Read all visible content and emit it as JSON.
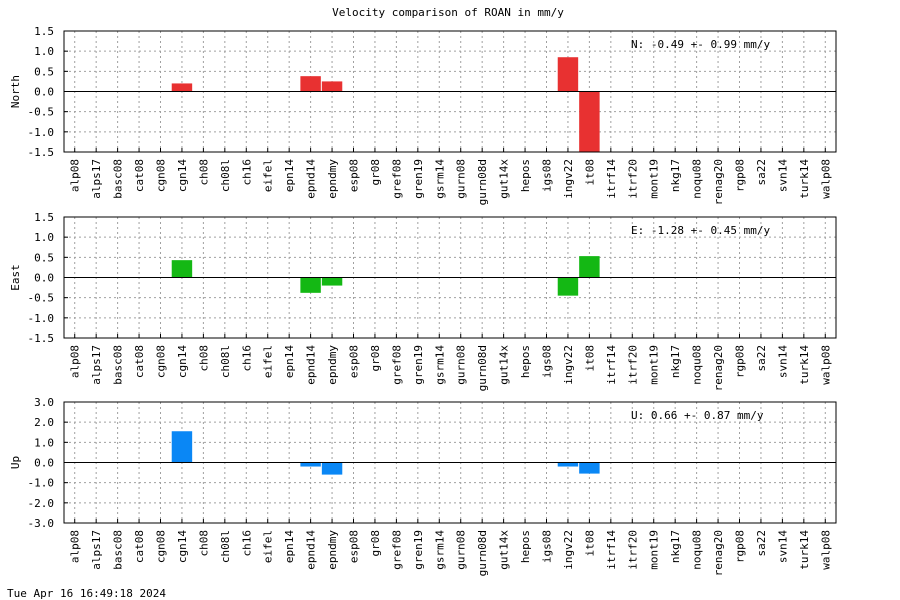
{
  "title": "Velocity comparison of ROAN in mm/y",
  "timestamp": "Tue Apr 16 16:49:18 2024",
  "chart_data": {
    "type": "bar",
    "title": "Velocity comparison of ROAN in mm/y",
    "categories": [
      "alp08",
      "alps17",
      "basc08",
      "cat08",
      "cgn08",
      "cgn14",
      "ch08",
      "ch08l",
      "ch16",
      "eifel",
      "epn14",
      "epnd14",
      "epndmy",
      "esp08",
      "gr08",
      "gref08",
      "gren19",
      "gsrm14",
      "gurn08",
      "gurn08d",
      "gut14x",
      "hepos",
      "igs08",
      "ingv22",
      "it08",
      "itrf14",
      "itrf20",
      "mont19",
      "nkg17",
      "noqu08",
      "renag20",
      "rgp08",
      "sa22",
      "svn14",
      "turk14",
      "walp08"
    ],
    "panels": [
      {
        "ylabel": "North",
        "ylim": [
          -1.5,
          1.5
        ],
        "yticks": [
          "1.5",
          "1.0",
          "0.5",
          "0.0",
          "-0.5",
          "-1.0",
          "-1.5"
        ],
        "color": "#e83131",
        "annotation": "N:  -0.49 +-  0.99 mm/y",
        "values": [
          null,
          null,
          null,
          null,
          null,
          0.2,
          null,
          null,
          null,
          null,
          null,
          0.38,
          0.25,
          null,
          null,
          null,
          null,
          null,
          null,
          null,
          null,
          null,
          null,
          0.85,
          null,
          null,
          null,
          null,
          null,
          null,
          null,
          null,
          null,
          null,
          null,
          null
        ],
        "clipped": {
          "24": -1.5
        }
      },
      {
        "ylabel": "East",
        "ylim": [
          -1.5,
          1.5
        ],
        "yticks": [
          "1.5",
          "1.0",
          "0.5",
          "0.0",
          "-0.5",
          "-1.0",
          "-1.5"
        ],
        "color": "#14b814",
        "annotation": "E:  -1.28 +-  0.45 mm/y",
        "values": [
          null,
          null,
          null,
          null,
          null,
          0.43,
          null,
          null,
          null,
          null,
          null,
          -0.38,
          -0.2,
          null,
          null,
          null,
          null,
          null,
          null,
          null,
          null,
          null,
          null,
          -0.45,
          0.53,
          null,
          null,
          null,
          null,
          null,
          null,
          null,
          null,
          null,
          null,
          null
        ]
      },
      {
        "ylabel": "Up",
        "ylim": [
          -3.0,
          3.0
        ],
        "yticks": [
          "3.0",
          "2.0",
          "1.0",
          "0.0",
          "-1.0",
          "-2.0",
          "-3.0"
        ],
        "color": "#0a87f5",
        "annotation": "U:   0.66 +-  0.87 mm/y",
        "values": [
          null,
          null,
          null,
          null,
          null,
          1.55,
          null,
          null,
          null,
          null,
          null,
          -0.2,
          -0.6,
          null,
          null,
          null,
          null,
          null,
          null,
          null,
          null,
          null,
          null,
          -0.2,
          -0.55,
          null,
          null,
          null,
          null,
          null,
          null,
          null,
          null,
          null,
          null,
          null
        ]
      }
    ],
    "grid": true
  }
}
